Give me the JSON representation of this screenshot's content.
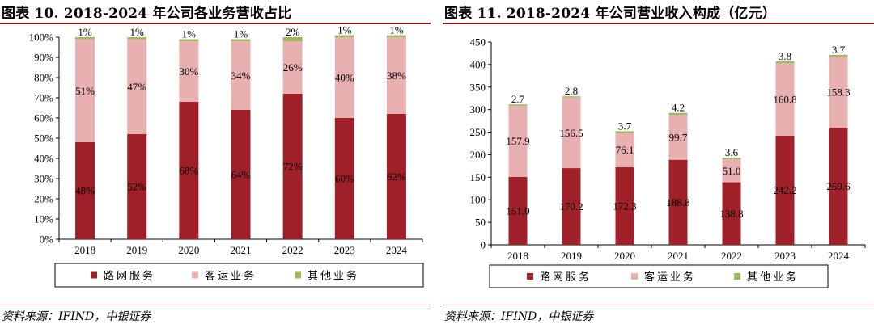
{
  "charts": [
    {
      "title": "图表 10. 2018-2024 年公司各业务营收占比",
      "source": "资料来源：IFIND，中银证券",
      "chart_data": {
        "type": "bar",
        "stacked": true,
        "categories": [
          "2018",
          "2019",
          "2020",
          "2021",
          "2022",
          "2023",
          "2024"
        ],
        "series": [
          {
            "name": "路网服务",
            "values": [
              48,
              52,
              68,
              64,
              72,
              60,
              62
            ],
            "labels": [
              "48%",
              "52%",
              "68%",
              "64%",
              "72%",
              "60%",
              "62%"
            ],
            "color": "#a0202a"
          },
          {
            "name": "客运业务",
            "values": [
              51,
              47,
              30,
              34,
              26,
              40,
              38
            ],
            "labels": [
              "51%",
              "47%",
              "30%",
              "34%",
              "26%",
              "40%",
              "38%"
            ],
            "color": "#e8b0b0"
          },
          {
            "name": "其他业务",
            "values": [
              1,
              1,
              1,
              1,
              2,
              1,
              1
            ],
            "labels": [
              "1%",
              "1%",
              "1%",
              "1%",
              "2%",
              "1%",
              "1%"
            ],
            "color": "#9bbb59"
          }
        ],
        "ylim": [
          0,
          100
        ],
        "yticks": [
          "0%",
          "10%",
          "20%",
          "30%",
          "40%",
          "50%",
          "60%",
          "70%",
          "80%",
          "90%",
          "100%"
        ],
        "grid": false,
        "legend": "bottom"
      }
    },
    {
      "title": "图表 11. 2018-2024 年公司营业收入构成（亿元）",
      "source": "资料来源：IFIND，中银证券",
      "chart_data": {
        "type": "bar",
        "stacked": true,
        "categories": [
          "2018",
          "2019",
          "2020",
          "2021",
          "2022",
          "2023",
          "2024"
        ],
        "series": [
          {
            "name": "路网服务",
            "values": [
              151.0,
              170.2,
              172.3,
              188.8,
              138.8,
              242.2,
              259.6
            ],
            "labels": [
              "151.0",
              "170.2",
              "172.3",
              "188.8",
              "138.8",
              "242.2",
              "259.6"
            ],
            "color": "#a0202a"
          },
          {
            "name": "客运业务",
            "values": [
              157.9,
              156.5,
              76.1,
              99.7,
              51.0,
              160.8,
              158.3
            ],
            "labels": [
              "157.9",
              "156.5",
              "76.1",
              "99.7",
              "51.0",
              "160.8",
              "158.3"
            ],
            "color": "#e8b0b0"
          },
          {
            "name": "其他业务",
            "values": [
              2.7,
              2.8,
              3.7,
              4.2,
              3.6,
              3.8,
              3.7
            ],
            "labels": [
              "2.7",
              "2.8",
              "3.7",
              "4.2",
              "3.6",
              "3.8",
              "3.7"
            ],
            "color": "#9bbb59"
          }
        ],
        "ylim": [
          0,
          450
        ],
        "yticks": [
          "0",
          "50",
          "100",
          "150",
          "200",
          "250",
          "300",
          "350",
          "400",
          "450"
        ],
        "grid": false,
        "legend": "bottom"
      }
    }
  ]
}
